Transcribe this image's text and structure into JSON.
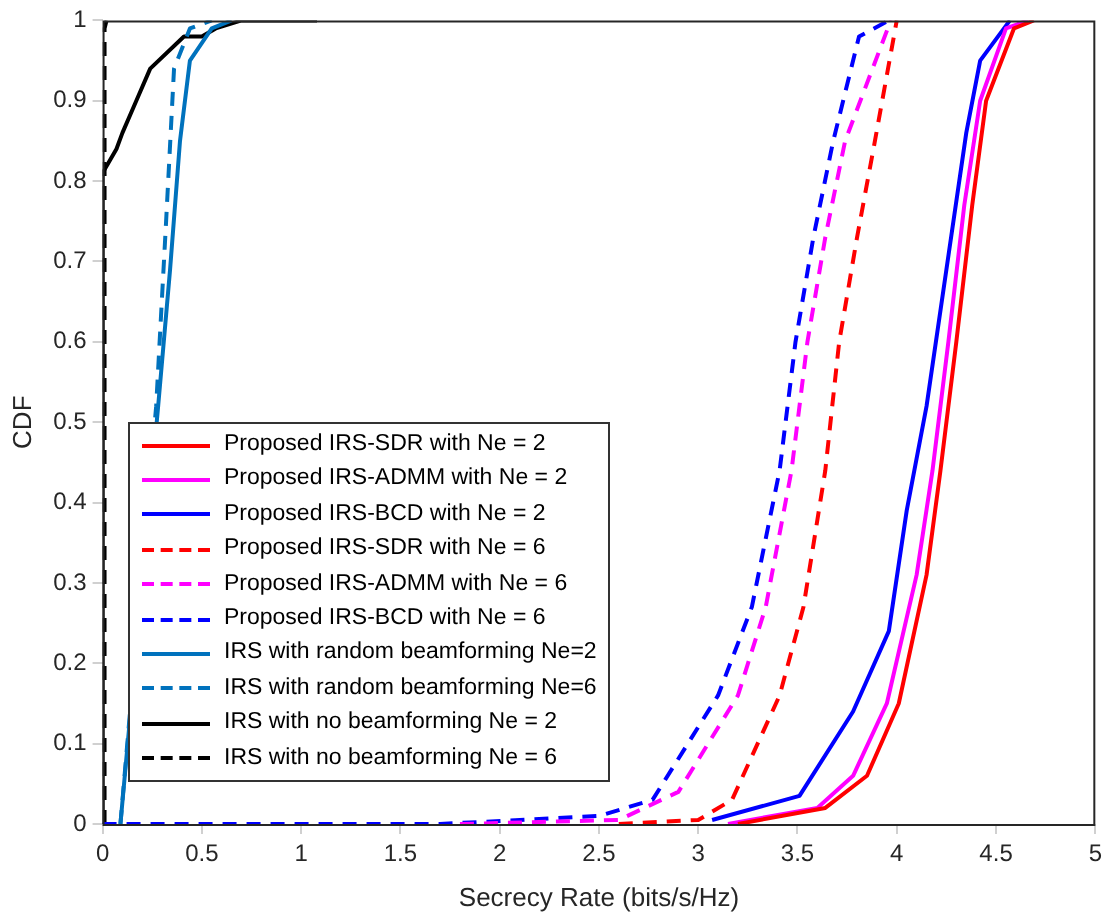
{
  "chart_data": {
    "type": "line",
    "xlabel": "Secrecy Rate (bits/s/Hz)",
    "ylabel": "CDF",
    "xlim": [
      0,
      5
    ],
    "ylim": [
      0,
      1
    ],
    "xticks": [
      0,
      0.5,
      1,
      1.5,
      2,
      2.5,
      3,
      3.5,
      4,
      4.5,
      5
    ],
    "yticks": [
      0,
      0.1,
      0.2,
      0.3,
      0.4,
      0.5,
      0.6,
      0.7,
      0.8,
      0.9,
      1
    ],
    "grid": false,
    "legend": "bottom left",
    "marker": "none",
    "series": [
      {
        "name": "Proposed IRS-SDR with Ne = 2",
        "color": "#ff0000",
        "line_style": "solid",
        "x": [
          3.2,
          3.64,
          3.85,
          4.01,
          4.15,
          4.22,
          4.3,
          4.38,
          4.45,
          4.59,
          4.69
        ],
        "values": [
          0,
          0.02,
          0.06,
          0.15,
          0.31,
          0.44,
          0.6,
          0.77,
          0.9,
          0.99,
          1
        ]
      },
      {
        "name": "Proposed IRS-ADMM with Ne = 2",
        "color": "#ff00ff",
        "line_style": "solid",
        "x": [
          3.15,
          3.6,
          3.78,
          3.95,
          4.1,
          4.18,
          4.26,
          4.34,
          4.42,
          4.55,
          4.66
        ],
        "values": [
          0,
          0.02,
          0.06,
          0.15,
          0.31,
          0.44,
          0.6,
          0.77,
          0.9,
          0.99,
          1
        ]
      },
      {
        "name": "Proposed IRS-BCD with Ne = 2",
        "color": "#0000ff",
        "line_style": "solid",
        "x": [
          3.07,
          3.51,
          3.78,
          3.96,
          4.05,
          4.15,
          4.25,
          4.35,
          4.42,
          4.57
        ],
        "values": [
          0.005,
          0.035,
          0.14,
          0.24,
          0.39,
          0.52,
          0.69,
          0.86,
          0.95,
          1
        ]
      },
      {
        "name": "Proposed IRS-SDR with Ne = 6",
        "color": "#ff0000",
        "line_style": "dashed",
        "x": [
          2.6,
          3.0,
          3.17,
          3.41,
          3.53,
          3.64,
          3.71,
          3.8,
          3.89,
          4.0
        ],
        "values": [
          0,
          0.005,
          0.03,
          0.16,
          0.27,
          0.44,
          0.6,
          0.73,
          0.85,
          1
        ]
      },
      {
        "name": "Proposed IRS-ADMM with Ne = 6",
        "color": "#ff00ff",
        "line_style": "dashed",
        "x": [
          1.8,
          2.6,
          2.9,
          3.2,
          3.34,
          3.47,
          3.55,
          3.64,
          3.74,
          3.97
        ],
        "values": [
          0,
          0.005,
          0.04,
          0.16,
          0.27,
          0.44,
          0.6,
          0.73,
          0.85,
          1
        ]
      },
      {
        "name": "Proposed IRS-BCD with Ne = 6",
        "color": "#0000ff",
        "line_style": "dashed",
        "x": [
          0,
          1.7,
          2.5,
          2.77,
          3.1,
          3.27,
          3.41,
          3.49,
          3.58,
          3.68,
          3.81,
          3.96
        ],
        "values": [
          0,
          0,
          0.01,
          0.03,
          0.16,
          0.27,
          0.44,
          0.6,
          0.73,
          0.85,
          0.98,
          1
        ]
      },
      {
        "name": "IRS with random beamforming Ne=2",
        "color": "#0072bd",
        "line_style": "solid",
        "x": [
          0.09,
          0.16,
          0.28,
          0.34,
          0.39,
          0.44,
          0.55,
          0.65
        ],
        "values": [
          0,
          null,
          0.52,
          0.69,
          0.85,
          0.95,
          0.99,
          1
        ]
      },
      {
        "name": "IRS with random beamforming Ne=6",
        "color": "#0072bd",
        "line_style": "dashed",
        "x": [
          0.09,
          0.16,
          0.27,
          0.32,
          0.36,
          0.44,
          0.55
        ],
        "values": [
          0,
          null,
          0.52,
          0.75,
          0.94,
          0.99,
          1
        ]
      },
      {
        "name": "IRS with no beamforming Ne = 2",
        "color": "#000000",
        "line_style": "solid",
        "x": [
          0,
          0,
          0.07,
          0.1,
          0.17,
          0.24,
          0.41,
          0.5,
          0.57,
          0.7,
          1.08
        ],
        "values": [
          0,
          0.81,
          0.84,
          0.86,
          0.9,
          0.94,
          0.98,
          0.98,
          0.99,
          1,
          1
        ]
      },
      {
        "name": "IRS with no beamforming Ne = 6",
        "color": "#000000",
        "line_style": "dashed",
        "x": [
          0.01,
          0.01,
          0.02
        ],
        "values": [
          0,
          0.99,
          1
        ]
      }
    ]
  }
}
